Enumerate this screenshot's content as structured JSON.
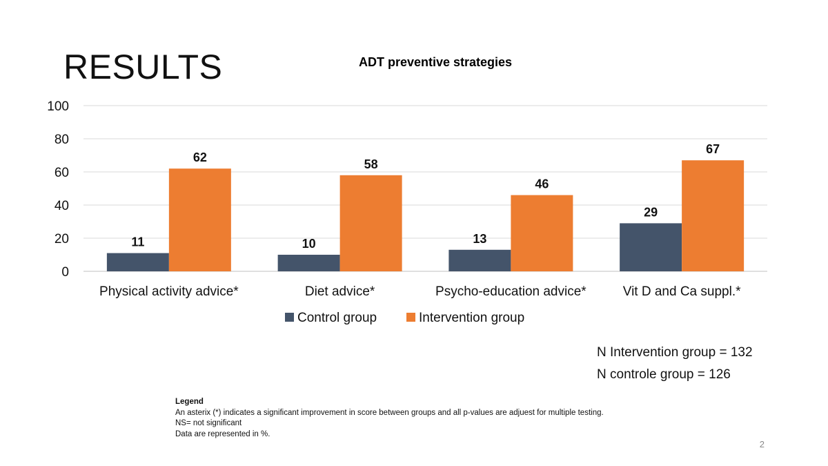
{
  "slide": {
    "title": "RESULTS",
    "page_number": "2"
  },
  "chart_data": {
    "type": "bar",
    "title": "ADT preventive strategies",
    "categories": [
      "Physical activity advice*",
      "Diet advice*",
      "Psycho-education advice*",
      "Vit D and Ca suppl.*"
    ],
    "series": [
      {
        "name": "Control group",
        "values": [
          11,
          10,
          13,
          29
        ],
        "color": "#44546a"
      },
      {
        "name": "Intervention group",
        "values": [
          62,
          58,
          46,
          67
        ],
        "color": "#ed7d31"
      }
    ],
    "ylim": [
      0,
      100
    ],
    "yticks": [
      0,
      20,
      40,
      60,
      80,
      100
    ],
    "grid": true,
    "legend": "bottom",
    "data_labels": true
  },
  "notes": {
    "n_intervention": "N Intervention group = 132",
    "n_control": "N controle group = 126"
  },
  "legend_block": {
    "heading": "Legend",
    "lines": [
      "An asterix (*) indicates a significant improvement in score between groups and all p-values are adjuest for multiple testing.",
      "NS= not significant",
      "Data are represented in %."
    ]
  }
}
